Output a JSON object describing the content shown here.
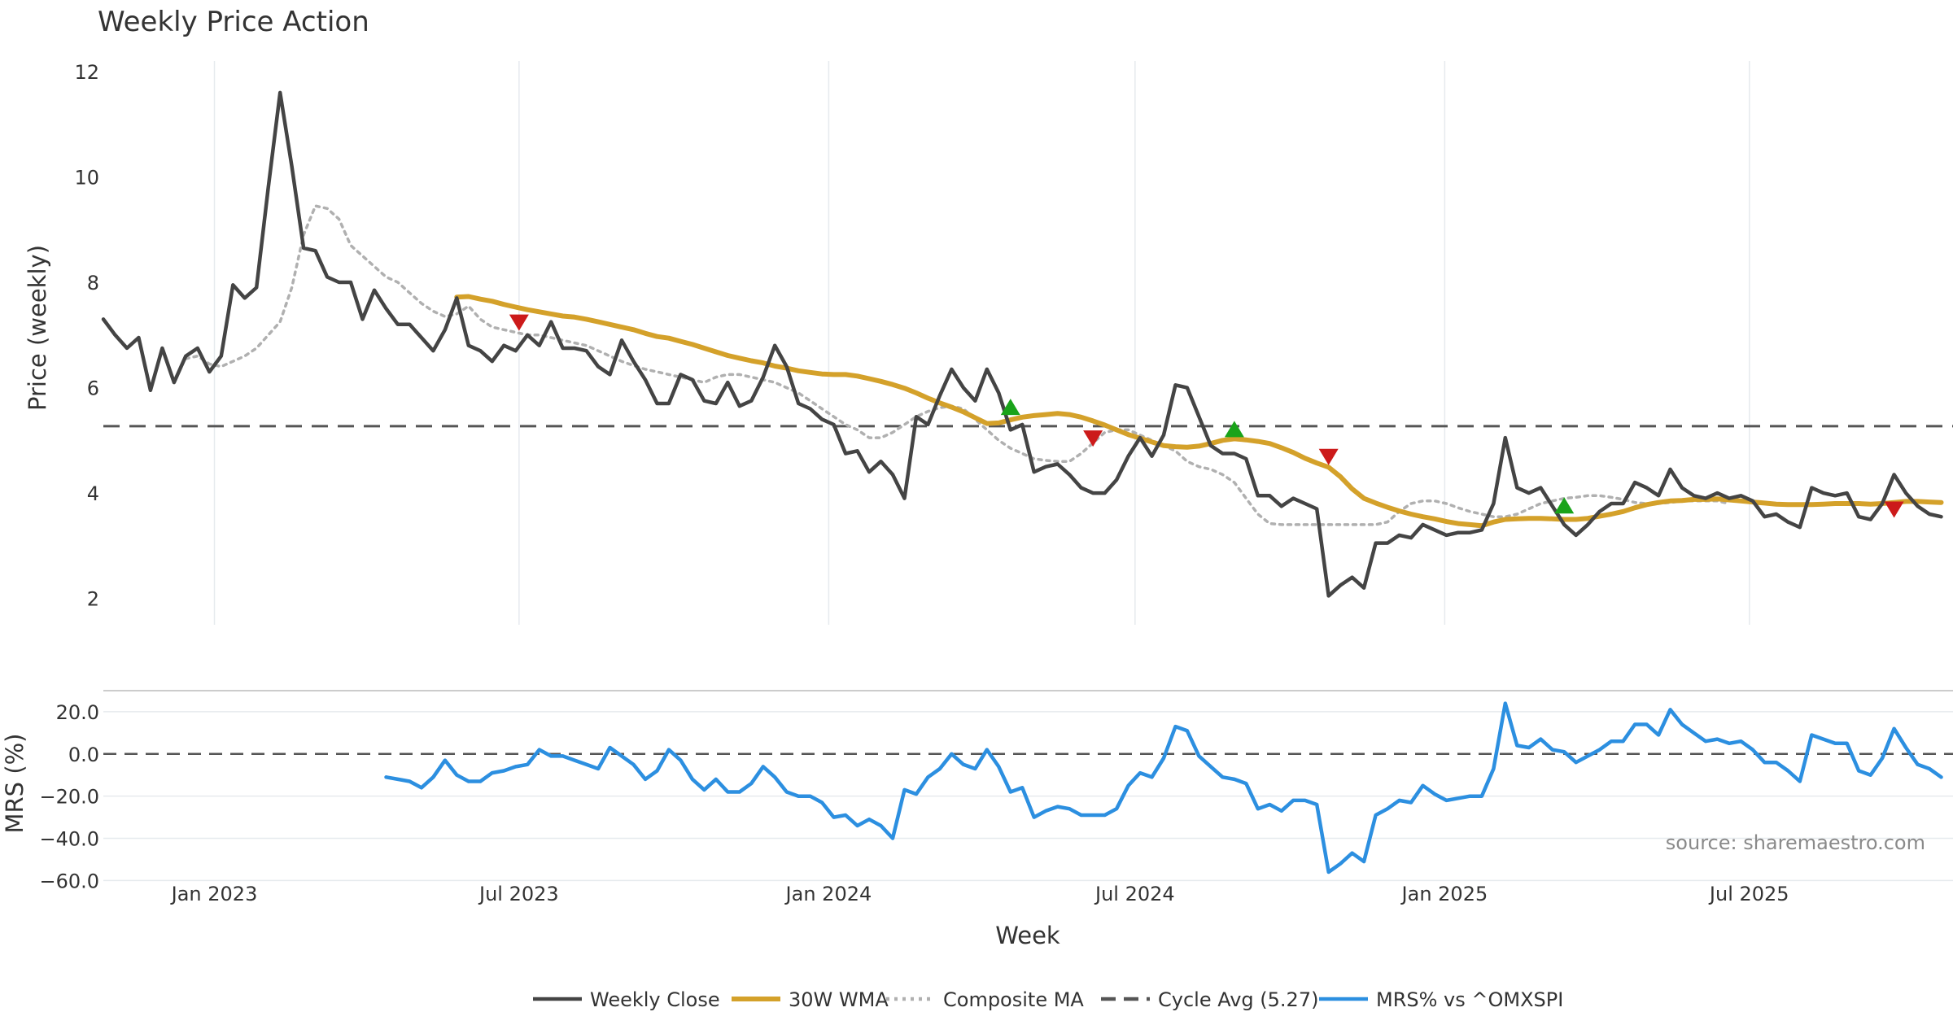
{
  "chart_data": {
    "type": "line",
    "title": "Weekly Price Action",
    "x_label": "Week",
    "x_ticks": [
      {
        "label": "Jan 2023",
        "date": "2023-01-01"
      },
      {
        "label": "Jul 2023",
        "date": "2023-07-01"
      },
      {
        "label": "Jan 2024",
        "date": "2024-01-01"
      },
      {
        "label": "Jul 2024",
        "date": "2024-07-01"
      },
      {
        "label": "Jan 2025",
        "date": "2025-01-01"
      },
      {
        "label": "Jul 2025",
        "date": "2025-07-01"
      }
    ],
    "x_range": [
      "2022-10-27",
      "2025-10-30"
    ],
    "source": "source: sharemaestro.com",
    "colors": {
      "weekly_close": "#444444",
      "wma": "#d4a12a",
      "composite": "#b0b0b0",
      "cycle": "#555555",
      "mrs": "#2c8fe0",
      "buy": "#1aa31a",
      "sell": "#cc1a1a",
      "grid": "#e6eaee"
    },
    "price_panel": {
      "y_label": "Price (weekly)",
      "y_ticks": [
        "2",
        "4",
        "6",
        "8",
        "10",
        "12"
      ],
      "y_range": [
        1.5,
        12.2
      ],
      "cycle_avg": 5.27,
      "series": [
        {
          "name": "Weekly Close",
          "key": "weekly_close",
          "start": "2022-10-27",
          "values": [
            7.3,
            7.0,
            6.75,
            6.95,
            5.95,
            6.75,
            6.1,
            6.6,
            6.75,
            6.3,
            6.6,
            7.95,
            7.7,
            7.9,
            9.8,
            11.6,
            10.2,
            8.65,
            8.6,
            8.1,
            8.0,
            8.0,
            7.3,
            7.85,
            7.5,
            7.2,
            7.2,
            6.95,
            6.7,
            7.1,
            7.7,
            6.8,
            6.7,
            6.5,
            6.8,
            6.7,
            7.0,
            6.8,
            7.25,
            6.75,
            6.75,
            6.7,
            6.4,
            6.25,
            6.9,
            6.5,
            6.15,
            5.7,
            5.7,
            6.25,
            6.15,
            5.75,
            5.7,
            6.1,
            5.65,
            5.75,
            6.2,
            6.8,
            6.4,
            5.7,
            5.6,
            5.4,
            5.3,
            4.75,
            4.8,
            4.4,
            4.6,
            4.35,
            3.9,
            5.45,
            5.3,
            5.85,
            6.35,
            6.0,
            5.75,
            6.35,
            5.9,
            5.2,
            5.3,
            4.4,
            4.5,
            4.55,
            4.35,
            4.1,
            4.0,
            4.0,
            4.25,
            4.7,
            5.05,
            4.7,
            5.1,
            6.05,
            6.0,
            5.45,
            4.9,
            4.75,
            4.75,
            4.65,
            3.95,
            3.95,
            3.75,
            3.9,
            3.8,
            3.7,
            2.05,
            2.25,
            2.4,
            2.2,
            3.05,
            3.05,
            3.2,
            3.15,
            3.4,
            3.3,
            3.2,
            3.25,
            3.25,
            3.3,
            3.8,
            5.05,
            4.1,
            4.0,
            4.1,
            3.75,
            3.4,
            3.2,
            3.4,
            3.65,
            3.8,
            3.8,
            4.2,
            4.1,
            3.95,
            4.45,
            4.1,
            3.95,
            3.9,
            4.0,
            3.9,
            3.95,
            3.85,
            3.55,
            3.6,
            3.45,
            3.35,
            4.1,
            4.0,
            3.95,
            4.0,
            3.55,
            3.5,
            3.8,
            4.35,
            4.0,
            3.75,
            3.6,
            3.55
          ]
        },
        {
          "name": "30W WMA",
          "key": "wma",
          "start": "2023-05-25",
          "values": [
            7.72,
            7.73,
            7.68,
            7.64,
            7.58,
            7.53,
            7.48,
            7.44,
            7.4,
            7.36,
            7.34,
            7.3,
            7.25,
            7.2,
            7.15,
            7.1,
            7.03,
            6.97,
            6.94,
            6.88,
            6.82,
            6.75,
            6.68,
            6.61,
            6.56,
            6.51,
            6.47,
            6.41,
            6.37,
            6.32,
            6.29,
            6.26,
            6.25,
            6.25,
            6.22,
            6.17,
            6.12,
            6.06,
            5.99,
            5.9,
            5.8,
            5.71,
            5.63,
            5.54,
            5.43,
            5.32,
            5.33,
            5.39,
            5.44,
            5.47,
            5.49,
            5.51,
            5.49,
            5.44,
            5.37,
            5.29,
            5.2,
            5.11,
            5.04,
            4.97,
            4.9,
            4.88,
            4.87,
            4.89,
            4.94,
            5.0,
            5.03,
            5.01,
            4.98,
            4.94,
            4.86,
            4.77,
            4.66,
            4.57,
            4.49,
            4.31,
            4.08,
            3.9,
            3.81,
            3.73,
            3.66,
            3.6,
            3.55,
            3.51,
            3.46,
            3.42,
            3.4,
            3.38,
            3.45,
            3.5,
            3.51,
            3.52,
            3.52,
            3.51,
            3.5,
            3.5,
            3.52,
            3.56,
            3.6,
            3.65,
            3.72,
            3.78,
            3.82,
            3.85,
            3.86,
            3.88,
            3.88,
            3.89,
            3.87,
            3.85,
            3.83,
            3.81,
            3.79,
            3.78,
            3.78,
            3.78,
            3.79,
            3.8,
            3.8,
            3.8,
            3.79,
            3.8,
            3.82,
            3.84,
            3.84,
            3.83,
            3.82
          ]
        },
        {
          "name": "Composite MA",
          "key": "composite",
          "start": "2022-12-15",
          "values": [
            6.55,
            6.6,
            6.45,
            6.4,
            6.5,
            6.6,
            6.75,
            7.0,
            7.25,
            7.9,
            8.9,
            9.45,
            9.4,
            9.2,
            8.7,
            8.5,
            8.3,
            8.1,
            8.0,
            7.8,
            7.6,
            7.45,
            7.35,
            7.4,
            7.55,
            7.3,
            7.15,
            7.1,
            7.05,
            7.0,
            7.0,
            6.95,
            6.9,
            6.85,
            6.8,
            6.7,
            6.6,
            6.5,
            6.42,
            6.35,
            6.3,
            6.25,
            6.2,
            6.15,
            6.1,
            6.2,
            6.25,
            6.25,
            6.2,
            6.15,
            6.1,
            6.0,
            5.9,
            5.75,
            5.6,
            5.45,
            5.3,
            5.2,
            5.05,
            5.05,
            5.15,
            5.3,
            5.45,
            5.55,
            5.62,
            5.65,
            5.6,
            5.4,
            5.2,
            5.0,
            4.85,
            4.75,
            4.65,
            4.62,
            4.6,
            4.6,
            4.75,
            4.95,
            5.15,
            5.2,
            5.2,
            5.1,
            5.0,
            4.9,
            4.8,
            4.6,
            4.5,
            4.45,
            4.35,
            4.2,
            3.9,
            3.6,
            3.42,
            3.4,
            3.4,
            3.4,
            3.4,
            3.4,
            3.4,
            3.4,
            3.4,
            3.4,
            3.45,
            3.65,
            3.8,
            3.85,
            3.85,
            3.8,
            3.72,
            3.65,
            3.6,
            3.55,
            3.55,
            3.6,
            3.7,
            3.8,
            3.85,
            3.9,
            3.92,
            3.95,
            3.95,
            3.92,
            3.88,
            3.82,
            3.8,
            3.8,
            3.82,
            3.85,
            3.85,
            3.85,
            3.85,
            3.8
          ]
        }
      ],
      "signals": [
        {
          "type": "sell",
          "date": "2023-07-01",
          "price": 7.25
        },
        {
          "type": "buy",
          "date": "2024-04-18",
          "price": 5.62
        },
        {
          "type": "sell",
          "date": "2024-06-06",
          "price": 5.05
        },
        {
          "type": "buy",
          "date": "2024-08-29",
          "price": 5.2
        },
        {
          "type": "sell",
          "date": "2024-10-24",
          "price": 4.7
        },
        {
          "type": "buy",
          "date": "2025-03-13",
          "price": 3.75
        },
        {
          "type": "sell",
          "date": "2025-09-25",
          "price": 3.7
        }
      ]
    },
    "mrs_panel": {
      "y_label": "MRS (%)",
      "y_ticks": [
        "20.0",
        "0.0",
        "−20.0",
        "−40.0",
        "−60.0"
      ],
      "y_range": [
        -61,
        30
      ],
      "series": [
        {
          "name": "MRS% vs ^OMXSPI",
          "key": "mrs",
          "start": "2023-04-13",
          "values": [
            -11,
            -12,
            -13,
            -16,
            -11,
            -3,
            -10,
            -13,
            -13,
            -9,
            -8,
            -6,
            -5,
            2,
            -1,
            -1,
            -3,
            -5,
            -7,
            3,
            -1,
            -5,
            -12,
            -8,
            2,
            -3,
            -12,
            -17,
            -12,
            -18,
            -18,
            -14,
            -6,
            -11,
            -18,
            -20,
            -20,
            -23,
            -30,
            -29,
            -34,
            -31,
            -34,
            -40,
            -17,
            -19,
            -11,
            -7,
            0,
            -5,
            -7,
            2,
            -6,
            -18,
            -16,
            -30,
            -27,
            -25,
            -26,
            -29,
            -29,
            -29,
            -26,
            -15,
            -9,
            -11,
            -2,
            13,
            11,
            -1,
            -6,
            -11,
            -12,
            -14,
            -26,
            -24,
            -27,
            -22,
            -22,
            -24,
            -56,
            -52,
            -47,
            -51,
            -29,
            -26,
            -22,
            -23,
            -15,
            -19,
            -22,
            -21,
            -20,
            -20,
            -7,
            24,
            4,
            3,
            7,
            2,
            1,
            -4,
            -1,
            2,
            6,
            6,
            14,
            14,
            9,
            21,
            14,
            10,
            6,
            7,
            5,
            6,
            2,
            -4,
            -4,
            -8,
            -13,
            9,
            7,
            5,
            5,
            -8,
            -10,
            -2,
            12,
            3,
            -5,
            -7,
            -11
          ]
        }
      ]
    },
    "legend": [
      {
        "label": "Weekly Close",
        "key": "weekly_close",
        "style": "solid"
      },
      {
        "label": "30W WMA",
        "key": "wma",
        "style": "solid"
      },
      {
        "label": "Composite MA",
        "key": "composite",
        "style": "dotted"
      },
      {
        "label": "Cycle Avg (5.27)",
        "key": "cycle",
        "style": "dashed"
      },
      {
        "label": "MRS% vs ^OMXSPI",
        "key": "mrs",
        "style": "solid"
      }
    ]
  }
}
